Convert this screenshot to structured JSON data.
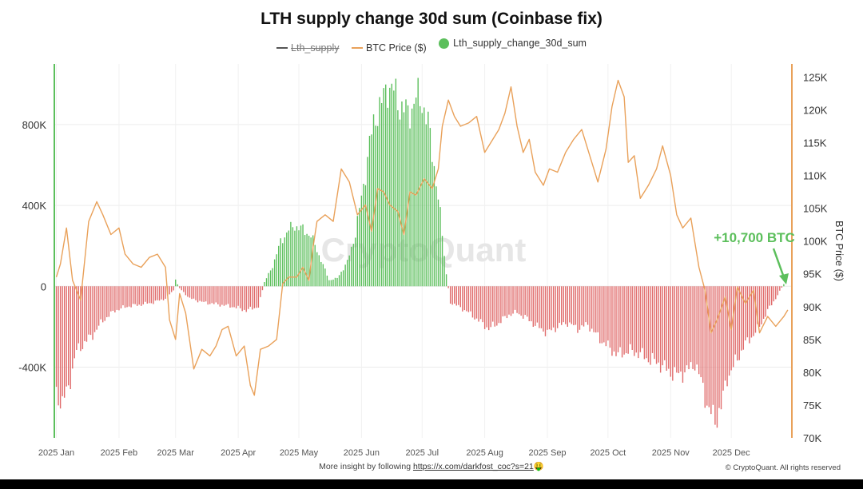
{
  "title": "LTH supply change 30d sum (Coinbase fix)",
  "legend": {
    "items": [
      {
        "label": "Lth_supply",
        "color": "#555555",
        "kind": "line",
        "hidden": true
      },
      {
        "label": "BTC Price ($)",
        "color": "#E9A15A",
        "kind": "line",
        "hidden": false
      },
      {
        "label": "Lth_supply_change_30d_sum",
        "color": "#5CBF5C",
        "kind": "dot",
        "hidden": false
      }
    ]
  },
  "footer": {
    "prefix": "More insight by following ",
    "link": "https://x.com/darkfost_coc?s=21",
    "emoji": "🤑",
    "copyright": "© CryptoQuant. All rights reserved"
  },
  "watermark": "CryptoQuant",
  "annotation": {
    "text": "+10,700 BTC",
    "color": "#5CBF5C"
  },
  "colors": {
    "positive": "#5CBF5C",
    "negative": "#E06B6B",
    "price": "#E9A15A",
    "left_axis": "#5CBF5C",
    "right_axis": "#E9A15A"
  },
  "chart_data": {
    "type": "bar",
    "x_type": "time",
    "x_range": [
      "2024-12-31",
      "2025-12-31"
    ],
    "x_ticks": [
      "2025 Jan",
      "2025 Feb",
      "2025 Mar",
      "2025 Apr",
      "2025 May",
      "2025 Jun",
      "2025 Jul",
      "2025 Aug",
      "2025 Sep",
      "2025 Oct",
      "2025 Nov",
      "2025 Dec"
    ],
    "y_left": {
      "range": [
        -750000,
        1100000
      ],
      "ticks": [
        -400000,
        0,
        400000,
        800000
      ],
      "tick_labels": [
        "-400K",
        "0",
        "400K",
        "800K"
      ]
    },
    "y_right": {
      "label": "BTC Price ($)",
      "range": [
        70000,
        127000
      ],
      "ticks": [
        70000,
        75000,
        80000,
        85000,
        90000,
        95000,
        100000,
        105000,
        110000,
        115000,
        120000,
        125000
      ],
      "tick_labels": [
        "70K",
        "75K",
        "80K",
        "85K",
        "90K",
        "95K",
        "100K",
        "105K",
        "110K",
        "115K",
        "120K",
        "125K"
      ]
    },
    "grid": true,
    "series": [
      {
        "name": "Lth_supply_change_30d_sum",
        "type": "bar",
        "points": [
          [
            "2025-01-01",
            -530000
          ],
          [
            "2025-01-04",
            -580000
          ],
          [
            "2025-01-07",
            -500000
          ],
          [
            "2025-01-11",
            -320000
          ],
          [
            "2025-01-15",
            -280000
          ],
          [
            "2025-01-19",
            -240000
          ],
          [
            "2025-01-24",
            -170000
          ],
          [
            "2025-01-30",
            -120000
          ],
          [
            "2025-02-05",
            -100000
          ],
          [
            "2025-02-12",
            -90000
          ],
          [
            "2025-02-18",
            -80000
          ],
          [
            "2025-02-24",
            -60000
          ],
          [
            "2025-02-28",
            -20000
          ],
          [
            "2025-03-01",
            30000
          ],
          [
            "2025-03-03",
            -10000
          ],
          [
            "2025-03-08",
            -60000
          ],
          [
            "2025-03-15",
            -80000
          ],
          [
            "2025-03-22",
            -90000
          ],
          [
            "2025-03-29",
            -100000
          ],
          [
            "2025-04-05",
            -120000
          ],
          [
            "2025-04-11",
            -100000
          ],
          [
            "2025-04-14",
            20000
          ],
          [
            "2025-04-18",
            100000
          ],
          [
            "2025-04-22",
            220000
          ],
          [
            "2025-04-26",
            280000
          ],
          [
            "2025-04-29",
            300000
          ],
          [
            "2025-05-03",
            280000
          ],
          [
            "2025-05-07",
            250000
          ],
          [
            "2025-05-12",
            130000
          ],
          [
            "2025-05-16",
            30000
          ],
          [
            "2025-05-20",
            40000
          ],
          [
            "2025-05-25",
            120000
          ],
          [
            "2025-05-29",
            260000
          ],
          [
            "2025-06-02",
            500000
          ],
          [
            "2025-06-05",
            700000
          ],
          [
            "2025-06-08",
            850000
          ],
          [
            "2025-06-11",
            900000
          ],
          [
            "2025-06-14",
            1000000
          ],
          [
            "2025-06-17",
            960000
          ],
          [
            "2025-06-20",
            900000
          ],
          [
            "2025-06-24",
            850000
          ],
          [
            "2025-06-28",
            930000
          ],
          [
            "2025-07-01",
            920000
          ],
          [
            "2025-07-04",
            800000
          ],
          [
            "2025-07-07",
            600000
          ],
          [
            "2025-07-10",
            350000
          ],
          [
            "2025-07-13",
            60000
          ],
          [
            "2025-07-15",
            -80000
          ],
          [
            "2025-07-19",
            -100000
          ],
          [
            "2025-07-24",
            -130000
          ],
          [
            "2025-07-29",
            -170000
          ],
          [
            "2025-08-03",
            -210000
          ],
          [
            "2025-08-08",
            -180000
          ],
          [
            "2025-08-13",
            -140000
          ],
          [
            "2025-08-17",
            -130000
          ],
          [
            "2025-08-22",
            -160000
          ],
          [
            "2025-08-27",
            -200000
          ],
          [
            "2025-09-01",
            -230000
          ],
          [
            "2025-09-06",
            -200000
          ],
          [
            "2025-09-11",
            -180000
          ],
          [
            "2025-09-16",
            -210000
          ],
          [
            "2025-09-21",
            -190000
          ],
          [
            "2025-09-26",
            -250000
          ],
          [
            "2025-10-01",
            -300000
          ],
          [
            "2025-10-06",
            -340000
          ],
          [
            "2025-10-11",
            -320000
          ],
          [
            "2025-10-16",
            -330000
          ],
          [
            "2025-10-21",
            -360000
          ],
          [
            "2025-10-26",
            -380000
          ],
          [
            "2025-10-31",
            -420000
          ],
          [
            "2025-11-04",
            -440000
          ],
          [
            "2025-11-09",
            -420000
          ],
          [
            "2025-11-13",
            -380000
          ],
          [
            "2025-11-17",
            -500000
          ],
          [
            "2025-11-20",
            -620000
          ],
          [
            "2025-11-23",
            -660000
          ],
          [
            "2025-11-26",
            -600000
          ],
          [
            "2025-11-29",
            -450000
          ],
          [
            "2025-12-03",
            -380000
          ],
          [
            "2025-12-07",
            -300000
          ],
          [
            "2025-12-11",
            -250000
          ],
          [
            "2025-12-15",
            -200000
          ],
          [
            "2025-12-19",
            -120000
          ],
          [
            "2025-12-23",
            -60000
          ],
          [
            "2025-12-27",
            10700
          ]
        ]
      },
      {
        "name": "BTC Price ($)",
        "type": "line",
        "points": [
          [
            "2025-01-01",
            94500
          ],
          [
            "2025-01-03",
            96500
          ],
          [
            "2025-01-06",
            102000
          ],
          [
            "2025-01-09",
            94000
          ],
          [
            "2025-01-13",
            91000
          ],
          [
            "2025-01-17",
            103000
          ],
          [
            "2025-01-21",
            106000
          ],
          [
            "2025-01-24",
            104000
          ],
          [
            "2025-01-28",
            101000
          ],
          [
            "2025-02-01",
            102000
          ],
          [
            "2025-02-04",
            98000
          ],
          [
            "2025-02-08",
            96500
          ],
          [
            "2025-02-12",
            96000
          ],
          [
            "2025-02-16",
            97500
          ],
          [
            "2025-02-20",
            98000
          ],
          [
            "2025-02-24",
            96000
          ],
          [
            "2025-02-26",
            88000
          ],
          [
            "2025-03-01",
            85000
          ],
          [
            "2025-03-03",
            92000
          ],
          [
            "2025-03-06",
            89000
          ],
          [
            "2025-03-10",
            80500
          ],
          [
            "2025-03-14",
            83500
          ],
          [
            "2025-03-18",
            82500
          ],
          [
            "2025-03-21",
            84000
          ],
          [
            "2025-03-24",
            86500
          ],
          [
            "2025-03-27",
            87000
          ],
          [
            "2025-03-31",
            82500
          ],
          [
            "2025-04-04",
            84000
          ],
          [
            "2025-04-07",
            78000
          ],
          [
            "2025-04-09",
            76500
          ],
          [
            "2025-04-12",
            83500
          ],
          [
            "2025-04-16",
            84000
          ],
          [
            "2025-04-20",
            85000
          ],
          [
            "2025-04-23",
            93500
          ],
          [
            "2025-04-26",
            94500
          ],
          [
            "2025-04-30",
            94500
          ],
          [
            "2025-05-03",
            96000
          ],
          [
            "2025-05-06",
            94000
          ],
          [
            "2025-05-08",
            99000
          ],
          [
            "2025-05-10",
            103000
          ],
          [
            "2025-05-14",
            104000
          ],
          [
            "2025-05-18",
            103000
          ],
          [
            "2025-05-22",
            111000
          ],
          [
            "2025-05-26",
            109000
          ],
          [
            "2025-05-30",
            104000
          ],
          [
            "2025-06-03",
            105500
          ],
          [
            "2025-06-06",
            101500
          ],
          [
            "2025-06-09",
            108000
          ],
          [
            "2025-06-12",
            107500
          ],
          [
            "2025-06-15",
            105500
          ],
          [
            "2025-06-19",
            104500
          ],
          [
            "2025-06-22",
            101000
          ],
          [
            "2025-06-25",
            107500
          ],
          [
            "2025-06-28",
            107000
          ],
          [
            "2025-07-02",
            109500
          ],
          [
            "2025-07-06",
            108000
          ],
          [
            "2025-07-09",
            111000
          ],
          [
            "2025-07-11",
            117500
          ],
          [
            "2025-07-14",
            121500
          ],
          [
            "2025-07-17",
            119000
          ],
          [
            "2025-07-20",
            117500
          ],
          [
            "2025-07-24",
            118000
          ],
          [
            "2025-07-28",
            119000
          ],
          [
            "2025-08-01",
            113500
          ],
          [
            "2025-08-04",
            115000
          ],
          [
            "2025-08-08",
            117000
          ],
          [
            "2025-08-11",
            119500
          ],
          [
            "2025-08-14",
            123500
          ],
          [
            "2025-08-17",
            117500
          ],
          [
            "2025-08-20",
            113500
          ],
          [
            "2025-08-23",
            115500
          ],
          [
            "2025-08-26",
            110500
          ],
          [
            "2025-08-30",
            108500
          ],
          [
            "2025-09-02",
            111000
          ],
          [
            "2025-09-06",
            110500
          ],
          [
            "2025-09-10",
            113500
          ],
          [
            "2025-09-14",
            115500
          ],
          [
            "2025-09-18",
            117000
          ],
          [
            "2025-09-22",
            113000
          ],
          [
            "2025-09-26",
            109000
          ],
          [
            "2025-09-30",
            114000
          ],
          [
            "2025-10-03",
            120500
          ],
          [
            "2025-10-06",
            124500
          ],
          [
            "2025-10-09",
            122000
          ],
          [
            "2025-10-11",
            112000
          ],
          [
            "2025-10-14",
            113000
          ],
          [
            "2025-10-17",
            106500
          ],
          [
            "2025-10-21",
            108500
          ],
          [
            "2025-10-25",
            111000
          ],
          [
            "2025-10-28",
            114500
          ],
          [
            "2025-11-01",
            110000
          ],
          [
            "2025-11-04",
            104000
          ],
          [
            "2025-11-07",
            102000
          ],
          [
            "2025-11-11",
            103500
          ],
          [
            "2025-11-15",
            96000
          ],
          [
            "2025-11-18",
            92500
          ],
          [
            "2025-11-21",
            86000
          ],
          [
            "2025-11-24",
            88000
          ],
          [
            "2025-11-28",
            91500
          ],
          [
            "2025-12-01",
            86500
          ],
          [
            "2025-12-04",
            93000
          ],
          [
            "2025-12-08",
            90500
          ],
          [
            "2025-12-12",
            92500
          ],
          [
            "2025-12-15",
            86000
          ],
          [
            "2025-12-19",
            88500
          ],
          [
            "2025-12-23",
            87000
          ],
          [
            "2025-12-27",
            88500
          ],
          [
            "2025-12-29",
            89500
          ]
        ]
      }
    ]
  }
}
